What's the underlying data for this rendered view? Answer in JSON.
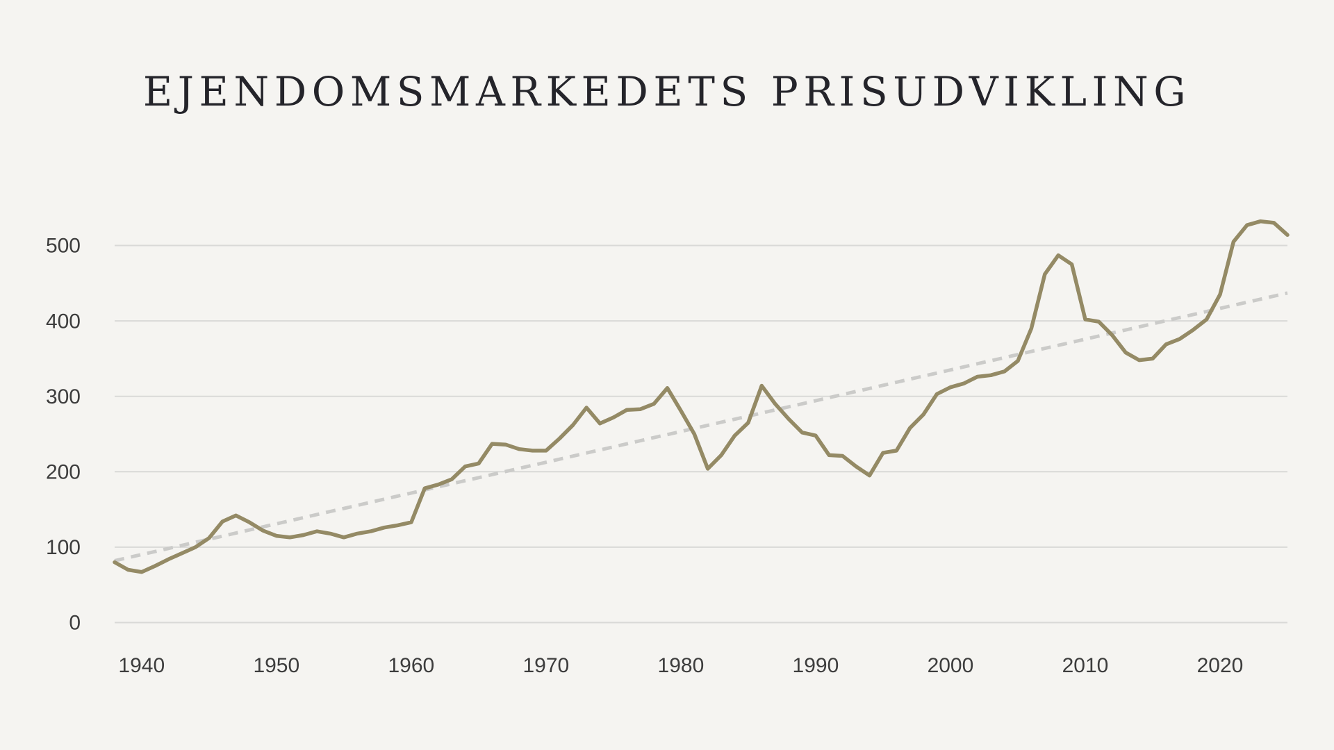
{
  "title": "EJENDOMSMARKEDETS PRISUDVIKLING",
  "colors": {
    "background": "#f5f4f1",
    "title": "#24242a",
    "grid": "#d9d9d7",
    "axis_label": "#3d3d3d",
    "price_line": "#948a65",
    "trend_line": "#cbcbc9"
  },
  "chart_data": {
    "type": "line",
    "title": "EJENDOMSMARKEDETS PRISUDVIKLING",
    "xlabel": "",
    "ylabel": "",
    "xlim": [
      1938,
      2025
    ],
    "ylim": [
      0,
      550
    ],
    "x_ticks": [
      1940,
      1950,
      1960,
      1970,
      1980,
      1990,
      2000,
      2010,
      2020
    ],
    "y_ticks": [
      0,
      100,
      200,
      300,
      400,
      500
    ],
    "grid": "horizontal-only",
    "legend": "none",
    "x": [
      1938,
      1939,
      1940,
      1941,
      1942,
      1943,
      1944,
      1945,
      1946,
      1947,
      1948,
      1949,
      1950,
      1951,
      1952,
      1953,
      1954,
      1955,
      1956,
      1957,
      1958,
      1959,
      1960,
      1961,
      1962,
      1963,
      1964,
      1965,
      1966,
      1967,
      1968,
      1969,
      1970,
      1971,
      1972,
      1973,
      1974,
      1975,
      1976,
      1977,
      1978,
      1979,
      1980,
      1981,
      1982,
      1983,
      1984,
      1985,
      1986,
      1987,
      1988,
      1989,
      1990,
      1991,
      1992,
      1993,
      1994,
      1995,
      1996,
      1997,
      1998,
      1999,
      2000,
      2001,
      2002,
      2003,
      2004,
      2005,
      2006,
      2007,
      2008,
      2009,
      2010,
      2011,
      2012,
      2013,
      2014,
      2015,
      2016,
      2017,
      2018,
      2019,
      2020,
      2021,
      2022,
      2023,
      2024,
      2025
    ],
    "series": [
      {
        "name": "property-price-index",
        "style": "solid",
        "color": "#948a65",
        "values": [
          80,
          70,
          67,
          75,
          84,
          92,
          100,
          112,
          134,
          142,
          133,
          122,
          115,
          113,
          116,
          121,
          118,
          113,
          118,
          121,
          126,
          129,
          133,
          178,
          183,
          190,
          207,
          211,
          237,
          236,
          230,
          228,
          228,
          244,
          262,
          285,
          264,
          272,
          282,
          283,
          290,
          311,
          281,
          250,
          204,
          222,
          248,
          265,
          314,
          290,
          270,
          252,
          248,
          222,
          221,
          207,
          195,
          225,
          228,
          258,
          276,
          303,
          312,
          317,
          326,
          328,
          333,
          347,
          390,
          462,
          487,
          475,
          402,
          399,
          381,
          358,
          348,
          350,
          369,
          376,
          388,
          402,
          435,
          505,
          527,
          532,
          530,
          514
        ]
      },
      {
        "name": "linear-trend",
        "style": "dashed",
        "color": "#cbcbc9",
        "endpoint_years": [
          1938,
          2025
        ],
        "endpoint_values": [
          82,
          437
        ]
      }
    ]
  }
}
